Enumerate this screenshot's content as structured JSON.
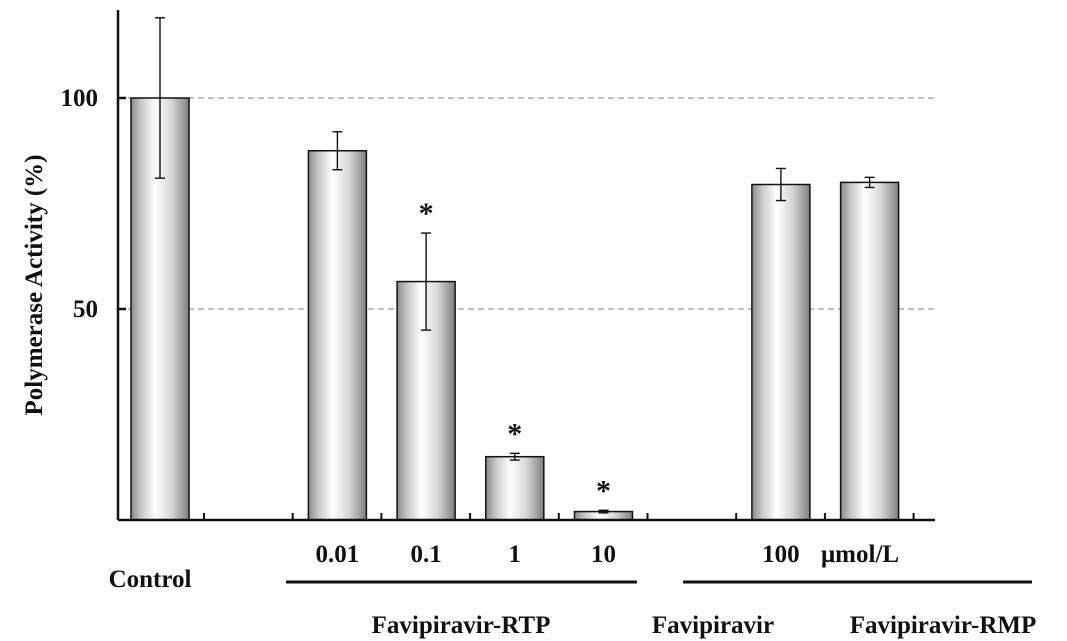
{
  "chart_data": {
    "type": "bar",
    "title": "",
    "ylabel": "Polymerase Activity (%)",
    "xlabel": "",
    "ylim": [
      0,
      120
    ],
    "yticks": [
      50,
      100
    ],
    "grid": "dashed horizontal at y ticks",
    "bar_fill": "silver cylindrical gradient",
    "bars": [
      {
        "slot": 0,
        "value": 100,
        "error": 19,
        "star": false
      },
      {
        "slot": 2,
        "value": 87.5,
        "error": 4.5,
        "star": false
      },
      {
        "slot": 3,
        "value": 56.5,
        "error": 11.5,
        "star": true
      },
      {
        "slot": 4,
        "value": 15,
        "error": 0.8,
        "star": true
      },
      {
        "slot": 5,
        "value": 2,
        "error": 0.3,
        "star": true
      },
      {
        "slot": 7,
        "value": 79.5,
        "error": 3.8,
        "star": false
      },
      {
        "slot": 8,
        "value": 80,
        "error": 1.2,
        "star": false
      }
    ],
    "star_symbol": "*",
    "tick_labels": [
      {
        "slot": 2,
        "text": "0.01"
      },
      {
        "slot": 3,
        "text": "0.1"
      },
      {
        "slot": 4,
        "text": "1"
      },
      {
        "slot": 5,
        "text": "10"
      },
      {
        "slot": 7,
        "text": "100"
      }
    ],
    "unit_label": "μmol/L",
    "control_label": "Control",
    "groups": [
      {
        "label": "Favipiravir-RTP",
        "slots": [
          2,
          5
        ]
      },
      {
        "label": "Favipiravir",
        "slots": [
          7,
          7
        ]
      },
      {
        "label": "Favipiravir-RMP",
        "slots": [
          8,
          8
        ]
      }
    ]
  }
}
